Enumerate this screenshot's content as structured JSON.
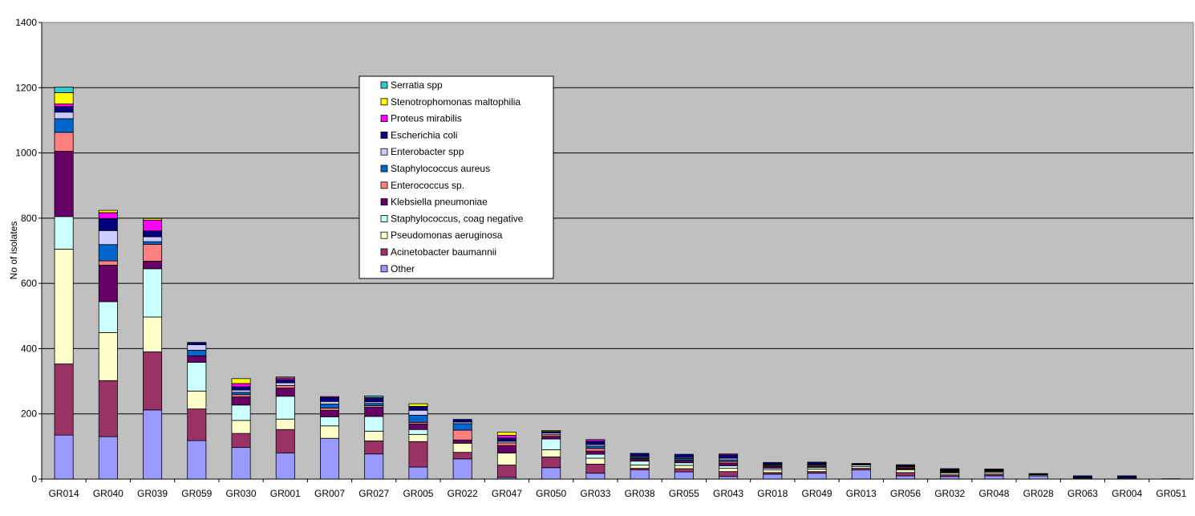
{
  "chart_data": {
    "type": "bar",
    "stacked": true,
    "ylabel": "No of isolates",
    "xlabel": "",
    "ylim": [
      0,
      1400
    ],
    "yticks": [
      0,
      200,
      400,
      600,
      800,
      1000,
      1200,
      1400
    ],
    "grid": true,
    "legend_position": "top-center",
    "plot_background": "#c0c0c0",
    "categories": [
      "GR014",
      "GR040",
      "GR039",
      "GR059",
      "GR030",
      "GR001",
      "GR007",
      "GR027",
      "GR005",
      "GR022",
      "GR047",
      "GR050",
      "GR033",
      "GR038",
      "GR055",
      "GR043",
      "GR018",
      "GR049",
      "GR013",
      "GR056",
      "GR032",
      "GR048",
      "GR028",
      "GR063",
      "GR004",
      "GR051"
    ],
    "series": [
      {
        "name": "Other",
        "color": "#9999ff",
        "values": [
          135,
          130,
          212,
          118,
          97,
          80,
          125,
          77,
          37,
          62,
          5,
          35,
          18,
          28,
          22,
          8,
          15,
          18,
          28,
          10,
          8,
          10,
          10,
          3,
          3,
          1
        ]
      },
      {
        "name": "Acinetobacter baumannii",
        "color": "#993366",
        "values": [
          218,
          172,
          178,
          97,
          43,
          72,
          0,
          40,
          78,
          20,
          38,
          33,
          28,
          5,
          10,
          15,
          5,
          5,
          5,
          10,
          5,
          5,
          0,
          2,
          2,
          0
        ]
      },
      {
        "name": "Pseudomonas aeruginosa",
        "color": "#ffffcc",
        "values": [
          352,
          147,
          107,
          55,
          40,
          32,
          38,
          30,
          22,
          28,
          37,
          22,
          18,
          10,
          10,
          10,
          8,
          8,
          5,
          8,
          5,
          5,
          3,
          0,
          0,
          0
        ]
      },
      {
        "name": "Staphylococcus, coag negative",
        "color": "#ccffff",
        "values": [
          100,
          95,
          148,
          88,
          47,
          70,
          28,
          45,
          15,
          0,
          0,
          33,
          12,
          12,
          8,
          8,
          5,
          5,
          5,
          3,
          3,
          3,
          2,
          0,
          0,
          0
        ]
      },
      {
        "name": "Klebsiella pneumoniae",
        "color": "#660066",
        "values": [
          200,
          112,
          23,
          20,
          25,
          25,
          20,
          28,
          17,
          10,
          23,
          8,
          10,
          5,
          5,
          8,
          5,
          3,
          0,
          3,
          2,
          2,
          0,
          0,
          0,
          0
        ]
      },
      {
        "name": "Enterococcus sp.",
        "color": "#ff8080",
        "values": [
          58,
          13,
          52,
          0,
          7,
          8,
          7,
          5,
          5,
          30,
          8,
          5,
          8,
          3,
          3,
          5,
          3,
          3,
          0,
          3,
          2,
          2,
          0,
          0,
          0,
          0
        ]
      },
      {
        "name": "Staphylococcus aureus",
        "color": "#0066cc",
        "values": [
          42,
          50,
          8,
          17,
          7,
          0,
          12,
          7,
          22,
          20,
          0,
          0,
          7,
          3,
          5,
          5,
          3,
          3,
          0,
          2,
          2,
          2,
          0,
          0,
          0,
          0
        ]
      },
      {
        "name": "Enterobacter spp",
        "color": "#ccccff",
        "values": [
          20,
          43,
          15,
          17,
          7,
          8,
          8,
          5,
          15,
          5,
          5,
          5,
          5,
          3,
          3,
          5,
          2,
          2,
          2,
          2,
          2,
          0,
          2,
          0,
          0,
          0
        ]
      },
      {
        "name": "Escherichia coli",
        "color": "#000080",
        "values": [
          17,
          37,
          18,
          7,
          10,
          10,
          12,
          10,
          12,
          8,
          10,
          5,
          10,
          10,
          10,
          10,
          5,
          5,
          3,
          3,
          3,
          2,
          0,
          5,
          5,
          0
        ]
      },
      {
        "name": "Proteus mirabilis",
        "color": "#ff00ff",
        "values": [
          8,
          18,
          33,
          0,
          10,
          5,
          3,
          3,
          0,
          0,
          8,
          0,
          5,
          0,
          0,
          3,
          0,
          0,
          0,
          0,
          0,
          0,
          0,
          0,
          0,
          0
        ]
      },
      {
        "name": "Stenotrophomonas maltophilia",
        "color": "#ffff00",
        "values": [
          35,
          7,
          5,
          0,
          15,
          3,
          0,
          0,
          8,
          0,
          10,
          3,
          0,
          0,
          0,
          0,
          0,
          0,
          0,
          0,
          0,
          0,
          0,
          0,
          0,
          0
        ]
      },
      {
        "name": "Serratia spp",
        "color": "#33cccc",
        "values": [
          17,
          0,
          0,
          0,
          0,
          0,
          0,
          5,
          0,
          0,
          0,
          0,
          0,
          0,
          0,
          0,
          0,
          0,
          0,
          0,
          0,
          0,
          0,
          0,
          0,
          0
        ]
      }
    ]
  }
}
